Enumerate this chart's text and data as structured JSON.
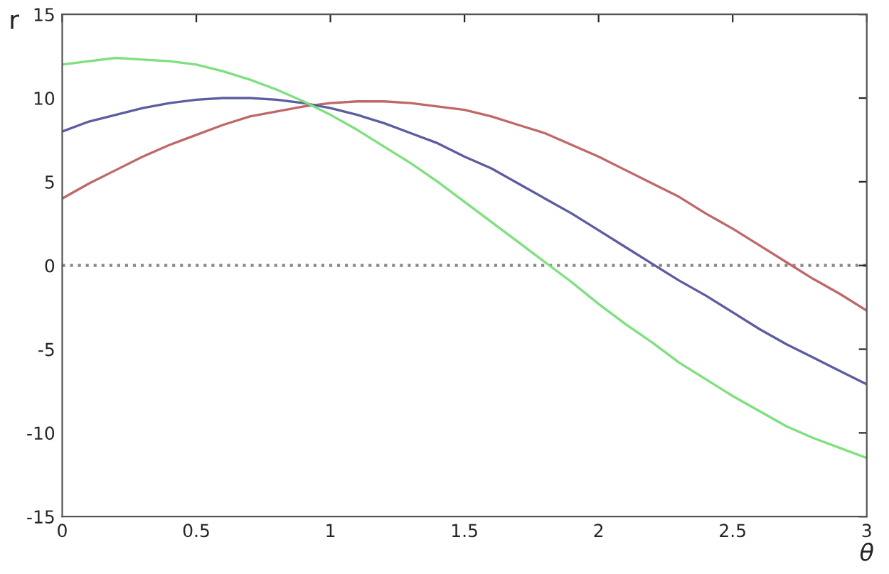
{
  "chart_data": {
    "type": "line",
    "xlabel": "θ",
    "ylabel": "r",
    "x": [
      0,
      0.1,
      0.2,
      0.3,
      0.4,
      0.5,
      0.6,
      0.7,
      0.8,
      0.9,
      1.0,
      1.1,
      1.2,
      1.3,
      1.4,
      1.5,
      1.6,
      1.7,
      1.8,
      1.9,
      2.0,
      2.1,
      2.2,
      2.3,
      2.4,
      2.5,
      2.6,
      2.7,
      2.8,
      2.9,
      3.0
    ],
    "series": [
      {
        "color": "#c06868",
        "values": [
          4.0,
          4.9,
          5.7,
          6.5,
          7.2,
          7.8,
          8.4,
          8.9,
          9.2,
          9.5,
          9.7,
          9.8,
          9.8,
          9.7,
          9.5,
          9.3,
          8.9,
          8.4,
          7.9,
          7.2,
          6.5,
          5.7,
          4.9,
          4.1,
          3.1,
          2.2,
          1.2,
          0.2,
          -0.8,
          -1.7,
          -2.7
        ]
      },
      {
        "color": "#5c5ca0",
        "values": [
          8.0,
          8.6,
          9.0,
          9.4,
          9.7,
          9.9,
          10.0,
          10.0,
          9.9,
          9.7,
          9.4,
          9.0,
          8.5,
          7.9,
          7.3,
          6.5,
          5.8,
          4.9,
          4.0,
          3.1,
          2.1,
          1.1,
          0.1,
          -0.9,
          -1.8,
          -2.8,
          -3.8,
          -4.7,
          -5.5,
          -6.3,
          -7.1
        ]
      },
      {
        "color": "#7ee07e",
        "values": [
          12.0,
          12.2,
          12.4,
          12.3,
          12.2,
          12.0,
          11.6,
          11.1,
          10.5,
          9.8,
          9.0,
          8.1,
          7.1,
          6.1,
          5.0,
          3.8,
          2.6,
          1.4,
          0.2,
          -1.0,
          -2.3,
          -3.5,
          -4.6,
          -5.8,
          -6.8,
          -7.8,
          -8.7,
          -9.6,
          -10.3,
          -10.9,
          -11.5
        ]
      }
    ],
    "xlim": [
      0,
      3
    ],
    "xticks": [
      0,
      0.5,
      1,
      1.5,
      2,
      2.5,
      3
    ],
    "ylim": [
      -15,
      15
    ],
    "yticks": [
      -15,
      -10,
      -5,
      0,
      5,
      10,
      15
    ],
    "ref_lines": [
      {
        "axis": "y",
        "value": 0,
        "color": "#888888",
        "line_style": "dotted"
      }
    ],
    "grid": false,
    "legend": false,
    "marker": "none",
    "line_style": "solid"
  }
}
